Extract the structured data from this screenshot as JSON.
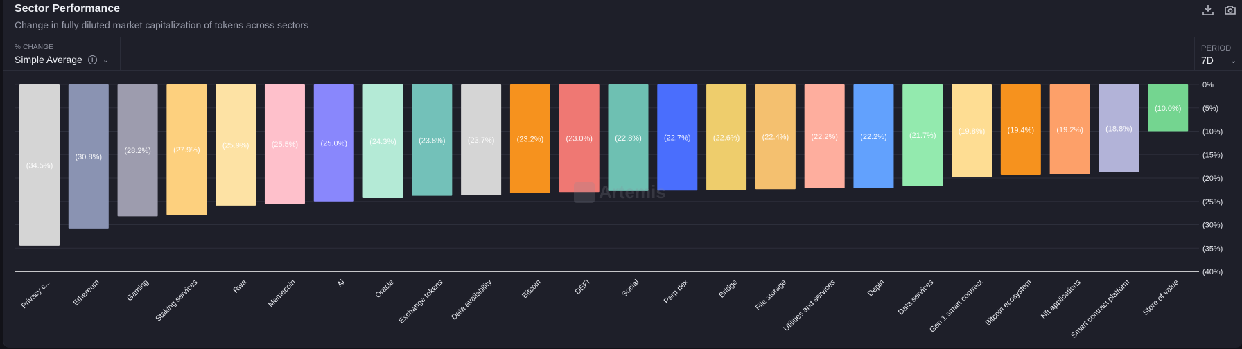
{
  "header": {
    "title": "Sector Performance",
    "subtitle": "Change in fully diluted market capitalization of tokens across sectors",
    "icons": [
      "download-icon",
      "camera-icon"
    ]
  },
  "controls": {
    "metric": {
      "label": "% CHANGE",
      "value": "Simple Average",
      "info_icon": "i",
      "chevron": "⌄"
    },
    "period": {
      "label": "PERIOD",
      "value": "7D",
      "chevron": "⌄"
    }
  },
  "watermark": "Artemis",
  "chart_data": {
    "type": "bar",
    "title": "Sector Performance",
    "xlabel": "",
    "ylabel": "% Change",
    "ylim": [
      -40,
      0
    ],
    "grid": true,
    "yticks": [
      0,
      -5,
      -10,
      -15,
      -20,
      -25,
      -30,
      -35,
      -40
    ],
    "ytick_labels": [
      "0%",
      "(5%)",
      "(10%)",
      "(15%)",
      "(20%)",
      "(25%)",
      "(30%)",
      "(35%)",
      "(40%)"
    ],
    "categories": [
      "Privacy c...",
      "Ethereum",
      "Gaming",
      "Staking services",
      "Rwa",
      "Memecoin",
      "Ai",
      "Oracle",
      "Exchange tokens",
      "Data availability",
      "Bitcoin",
      "DEFI",
      "Social",
      "Perp dex",
      "Bridge",
      "File storage",
      "Utilities and services",
      "Depin",
      "Data services",
      "Gen 1 smart contract",
      "Bitcoin ecosystem",
      "Nft applications",
      "Smart contract platform",
      "Store of value"
    ],
    "values": [
      -34.5,
      -30.8,
      -28.2,
      -27.9,
      -25.9,
      -25.5,
      -25.0,
      -24.3,
      -23.8,
      -23.7,
      -23.2,
      -23.0,
      -22.8,
      -22.7,
      -22.6,
      -22.4,
      -22.2,
      -22.2,
      -21.7,
      -19.8,
      -19.4,
      -19.2,
      -18.8,
      -10.0
    ],
    "data_labels": [
      "(34.5%)",
      "(30.8%)",
      "(28.2%)",
      "(27.9%)",
      "(25.9%)",
      "(25.5%)",
      "(25.0%)",
      "(24.3%)",
      "(23.8%)",
      "(23.7%)",
      "(23.2%)",
      "(23.0%)",
      "(22.8%)",
      "(22.7%)",
      "(22.6%)",
      "(22.4%)",
      "(22.2%)",
      "(22.2%)",
      "(21.7%)",
      "(19.8%)",
      "(19.4%)",
      "(19.2%)",
      "(18.8%)",
      "(10.0%)"
    ],
    "colors": [
      "#d5d5d5",
      "#8a93b2",
      "#9d9cae",
      "#fdd07e",
      "#fde2a4",
      "#fec0cb",
      "#8987fc",
      "#b4ead6",
      "#73c1b9",
      "#d5d5d5",
      "#f6921e",
      "#ef7873",
      "#6ec0b2",
      "#4a6efd",
      "#eecd6c",
      "#f4c06f",
      "#feae9e",
      "#62a1fd",
      "#93eaae",
      "#fedd93",
      "#f6921e",
      "#fda069",
      "#b2b3d8",
      "#74d590"
    ],
    "legend": "none"
  }
}
